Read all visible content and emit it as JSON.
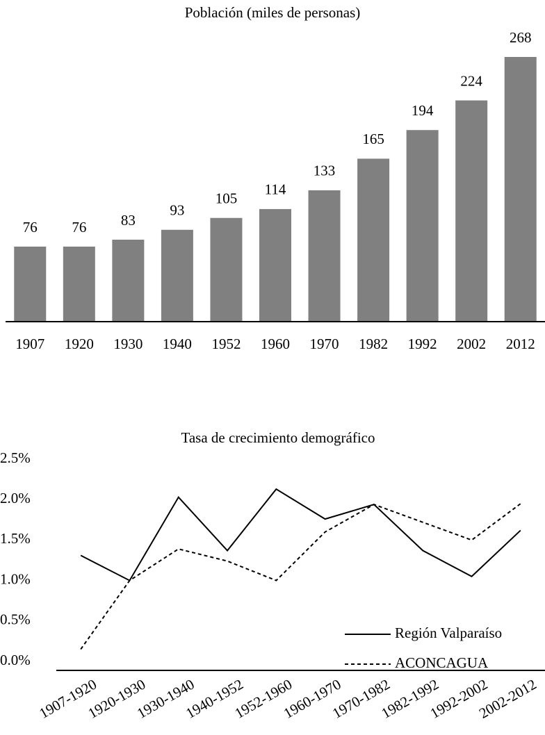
{
  "chart_data": [
    {
      "type": "bar",
      "title": "Población (miles de personas)",
      "categories": [
        "1907",
        "1920",
        "1930",
        "1940",
        "1952",
        "1960",
        "1970",
        "1982",
        "1992",
        "2002",
        "2012"
      ],
      "values": [
        76,
        76,
        83,
        93,
        105,
        114,
        133,
        165,
        194,
        224,
        268
      ],
      "color": "#808080"
    },
    {
      "type": "line",
      "title": "Tasa de crecimiento demográfico",
      "categories": [
        "1907-1920",
        "1920-1930",
        "1930-1940",
        "1940-1952",
        "1952-1960",
        "1960-1970",
        "1970-1982",
        "1982-1992",
        "1992-2002",
        "2002-2012"
      ],
      "series": [
        {
          "name": "Región Valparaíso",
          "color": "#000000",
          "dash": "solid",
          "values": [
            1.31,
            1.0,
            2.03,
            1.37,
            2.13,
            1.76,
            1.94,
            1.37,
            1.05,
            1.62
          ]
        },
        {
          "name": "ACONCAGUA",
          "color": "#000000",
          "dash": "dashed",
          "values": [
            0.15,
            1.0,
            1.39,
            1.24,
            1.0,
            1.6,
            1.94,
            1.72,
            1.5,
            1.95
          ]
        }
      ],
      "ylim": [
        0,
        2.5
      ],
      "yticks": [
        {
          "value": 0,
          "label": "0.0%"
        },
        {
          "value": 0.5,
          "label": "0.5%"
        },
        {
          "value": 1,
          "label": "1.0%"
        },
        {
          "value": 1.5,
          "label": "1.5%"
        },
        {
          "value": 2,
          "label": "2.0%"
        },
        {
          "value": 2.5,
          "label": "2.5%"
        }
      ],
      "legend": "bottom-right"
    }
  ]
}
